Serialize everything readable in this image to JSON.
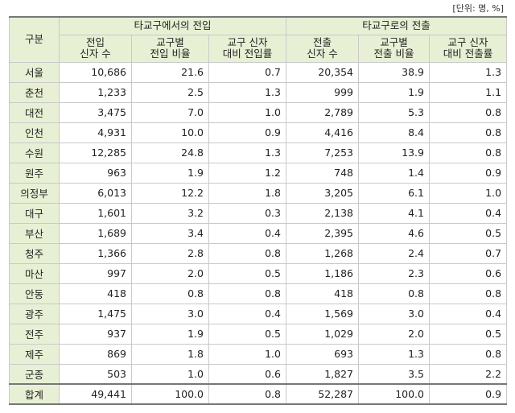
{
  "unit_note": "[단위: 명, %]",
  "header": {
    "region": "구분",
    "group_in": "타교구에서의 전입",
    "group_out": "타교구로의 전출",
    "col_in_count": [
      "전입",
      "신자 수"
    ],
    "col_in_ratio": [
      "교구별",
      "전입 비율"
    ],
    "col_in_rate": [
      "교구 신자",
      "대비 전입률"
    ],
    "col_out_count": [
      "전출",
      "신자 수"
    ],
    "col_out_ratio": [
      "교구별",
      "전출 비율"
    ],
    "col_out_rate": [
      "교구 신자",
      "대비 전출률"
    ]
  },
  "rows": [
    {
      "name": "서울",
      "in_count": "10,686",
      "in_ratio": "21.6",
      "in_rate": "0.7",
      "out_count": "20,354",
      "out_ratio": "38.9",
      "out_rate": "1.3"
    },
    {
      "name": "춘천",
      "in_count": "1,233",
      "in_ratio": "2.5",
      "in_rate": "1.3",
      "out_count": "999",
      "out_ratio": "1.9",
      "out_rate": "1.1"
    },
    {
      "name": "대전",
      "in_count": "3,475",
      "in_ratio": "7.0",
      "in_rate": "1.0",
      "out_count": "2,789",
      "out_ratio": "5.3",
      "out_rate": "0.8"
    },
    {
      "name": "인천",
      "in_count": "4,931",
      "in_ratio": "10.0",
      "in_rate": "0.9",
      "out_count": "4,416",
      "out_ratio": "8.4",
      "out_rate": "0.8"
    },
    {
      "name": "수원",
      "in_count": "12,285",
      "in_ratio": "24.8",
      "in_rate": "1.3",
      "out_count": "7,253",
      "out_ratio": "13.9",
      "out_rate": "0.8"
    },
    {
      "name": "원주",
      "in_count": "963",
      "in_ratio": "1.9",
      "in_rate": "1.2",
      "out_count": "748",
      "out_ratio": "1.4",
      "out_rate": "0.9"
    },
    {
      "name": "의정부",
      "in_count": "6,013",
      "in_ratio": "12.2",
      "in_rate": "1.8",
      "out_count": "3,205",
      "out_ratio": "6.1",
      "out_rate": "1.0"
    },
    {
      "name": "대구",
      "in_count": "1,601",
      "in_ratio": "3.2",
      "in_rate": "0.3",
      "out_count": "2,138",
      "out_ratio": "4.1",
      "out_rate": "0.4"
    },
    {
      "name": "부산",
      "in_count": "1,689",
      "in_ratio": "3.4",
      "in_rate": "0.4",
      "out_count": "2,395",
      "out_ratio": "4.6",
      "out_rate": "0.5"
    },
    {
      "name": "청주",
      "in_count": "1,366",
      "in_ratio": "2.8",
      "in_rate": "0.8",
      "out_count": "1,268",
      "out_ratio": "2.4",
      "out_rate": "0.7"
    },
    {
      "name": "마산",
      "in_count": "997",
      "in_ratio": "2.0",
      "in_rate": "0.5",
      "out_count": "1,186",
      "out_ratio": "2.3",
      "out_rate": "0.6"
    },
    {
      "name": "안동",
      "in_count": "418",
      "in_ratio": "0.8",
      "in_rate": "0.8",
      "out_count": "418",
      "out_ratio": "0.8",
      "out_rate": "0.8"
    },
    {
      "name": "광주",
      "in_count": "1,475",
      "in_ratio": "3.0",
      "in_rate": "0.4",
      "out_count": "1,569",
      "out_ratio": "3.0",
      "out_rate": "0.4"
    },
    {
      "name": "전주",
      "in_count": "937",
      "in_ratio": "1.9",
      "in_rate": "0.5",
      "out_count": "1,029",
      "out_ratio": "2.0",
      "out_rate": "0.5"
    },
    {
      "name": "제주",
      "in_count": "869",
      "in_ratio": "1.8",
      "in_rate": "1.0",
      "out_count": "693",
      "out_ratio": "1.3",
      "out_rate": "0.8"
    },
    {
      "name": "군종",
      "in_count": "503",
      "in_ratio": "1.0",
      "in_rate": "0.6",
      "out_count": "1,827",
      "out_ratio": "3.5",
      "out_rate": "2.2"
    },
    {
      "name": "합계",
      "in_count": "49,441",
      "in_ratio": "100.0",
      "in_rate": "0.8",
      "out_count": "52,287",
      "out_ratio": "100.0",
      "out_rate": "0.9"
    }
  ]
}
